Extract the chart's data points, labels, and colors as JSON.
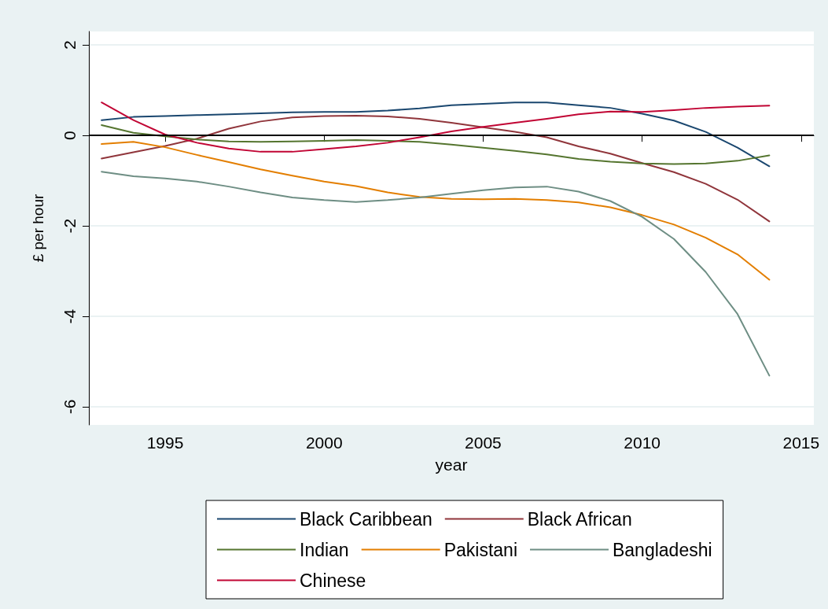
{
  "chart_data": {
    "type": "line",
    "xlabel": "year",
    "ylabel": "£ per hour",
    "x": [
      1993,
      1994,
      1995,
      1996,
      1997,
      1998,
      1999,
      2000,
      2001,
      2002,
      2003,
      2004,
      2005,
      2006,
      2007,
      2008,
      2009,
      2010,
      2011,
      2012,
      2013,
      2014
    ],
    "series": [
      {
        "name": "Black Caribbean",
        "color": "#1a476f",
        "values": [
          0.34,
          0.41,
          0.43,
          0.45,
          0.47,
          0.49,
          0.51,
          0.52,
          0.52,
          0.55,
          0.6,
          0.67,
          0.7,
          0.73,
          0.73,
          0.67,
          0.61,
          0.48,
          0.33,
          0.08,
          -0.27,
          -0.68
        ]
      },
      {
        "name": "Black African",
        "color": "#90353b",
        "values": [
          -0.51,
          -0.37,
          -0.23,
          -0.07,
          0.15,
          0.31,
          0.4,
          0.43,
          0.44,
          0.42,
          0.37,
          0.28,
          0.18,
          0.08,
          -0.04,
          -0.24,
          -0.4,
          -0.61,
          -0.81,
          -1.07,
          -1.42,
          -1.9
        ]
      },
      {
        "name": "Indian",
        "color": "#55752f",
        "values": [
          0.23,
          0.06,
          -0.02,
          -0.09,
          -0.13,
          -0.14,
          -0.13,
          -0.12,
          -0.1,
          -0.12,
          -0.14,
          -0.2,
          -0.27,
          -0.34,
          -0.42,
          -0.52,
          -0.58,
          -0.62,
          -0.63,
          -0.62,
          -0.56,
          -0.44
        ]
      },
      {
        "name": "Pakistani",
        "color": "#e37e00",
        "values": [
          -0.19,
          -0.14,
          -0.26,
          -0.43,
          -0.59,
          -0.75,
          -0.89,
          -1.02,
          -1.12,
          -1.26,
          -1.36,
          -1.4,
          -1.41,
          -1.4,
          -1.43,
          -1.48,
          -1.59,
          -1.76,
          -1.97,
          -2.26,
          -2.63,
          -3.19
        ]
      },
      {
        "name": "Bangladeshi",
        "color": "#6e8e84",
        "values": [
          -0.8,
          -0.9,
          -0.95,
          -1.02,
          -1.13,
          -1.26,
          -1.37,
          -1.43,
          -1.47,
          -1.43,
          -1.37,
          -1.29,
          -1.21,
          -1.15,
          -1.13,
          -1.24,
          -1.45,
          -1.8,
          -2.29,
          -3.02,
          -3.95,
          -5.31
        ]
      },
      {
        "name": "Chinese",
        "color": "#c10534",
        "values": [
          0.73,
          0.34,
          0.02,
          -0.16,
          -0.29,
          -0.36,
          -0.36,
          -0.3,
          -0.24,
          -0.16,
          -0.04,
          0.09,
          0.19,
          0.28,
          0.37,
          0.47,
          0.53,
          0.52,
          0.56,
          0.61,
          0.64,
          0.66
        ]
      }
    ],
    "xlim": [
      1992.6,
      2015.4
    ],
    "xticks": [
      1995,
      2000,
      2005,
      2010,
      2015
    ],
    "ylim": [
      -6.4,
      2.3
    ],
    "yticks": [
      -6,
      -4,
      -2,
      0,
      2
    ],
    "ref_lines": [
      {
        "axis": "y",
        "value": 0,
        "color": "#000000"
      }
    ],
    "grid": "y",
    "legend": "bottom",
    "marker": "none",
    "line_style": "solid"
  }
}
